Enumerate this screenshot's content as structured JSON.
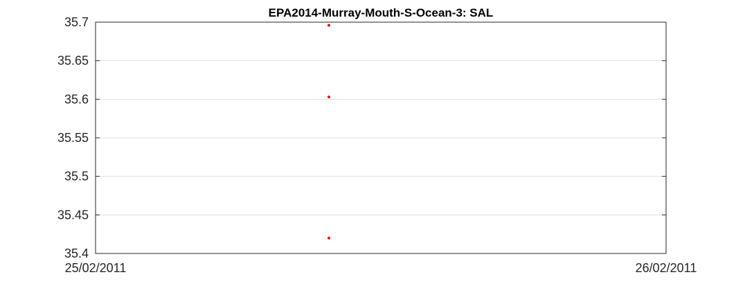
{
  "chart_data": {
    "type": "scatter",
    "title": "EPA2014-Murray-Mouth-S-Ocean-3: SAL",
    "xlabel": "",
    "ylabel": "",
    "x_ticks": [
      "25/02/2011",
      "26/02/2011"
    ],
    "y_ticks": [
      "35.4",
      "35.45",
      "35.5",
      "35.55",
      "35.6",
      "35.65",
      "35.7"
    ],
    "ylim": [
      35.4,
      35.7
    ],
    "xlim_days": [
      0,
      1
    ],
    "grid": "horizontal",
    "legend": "none",
    "marker_color": "#ff0000",
    "points": [
      {
        "x": 0.409,
        "y": 35.696
      },
      {
        "x": 0.409,
        "y": 35.603
      },
      {
        "x": 0.409,
        "y": 35.42
      }
    ]
  }
}
